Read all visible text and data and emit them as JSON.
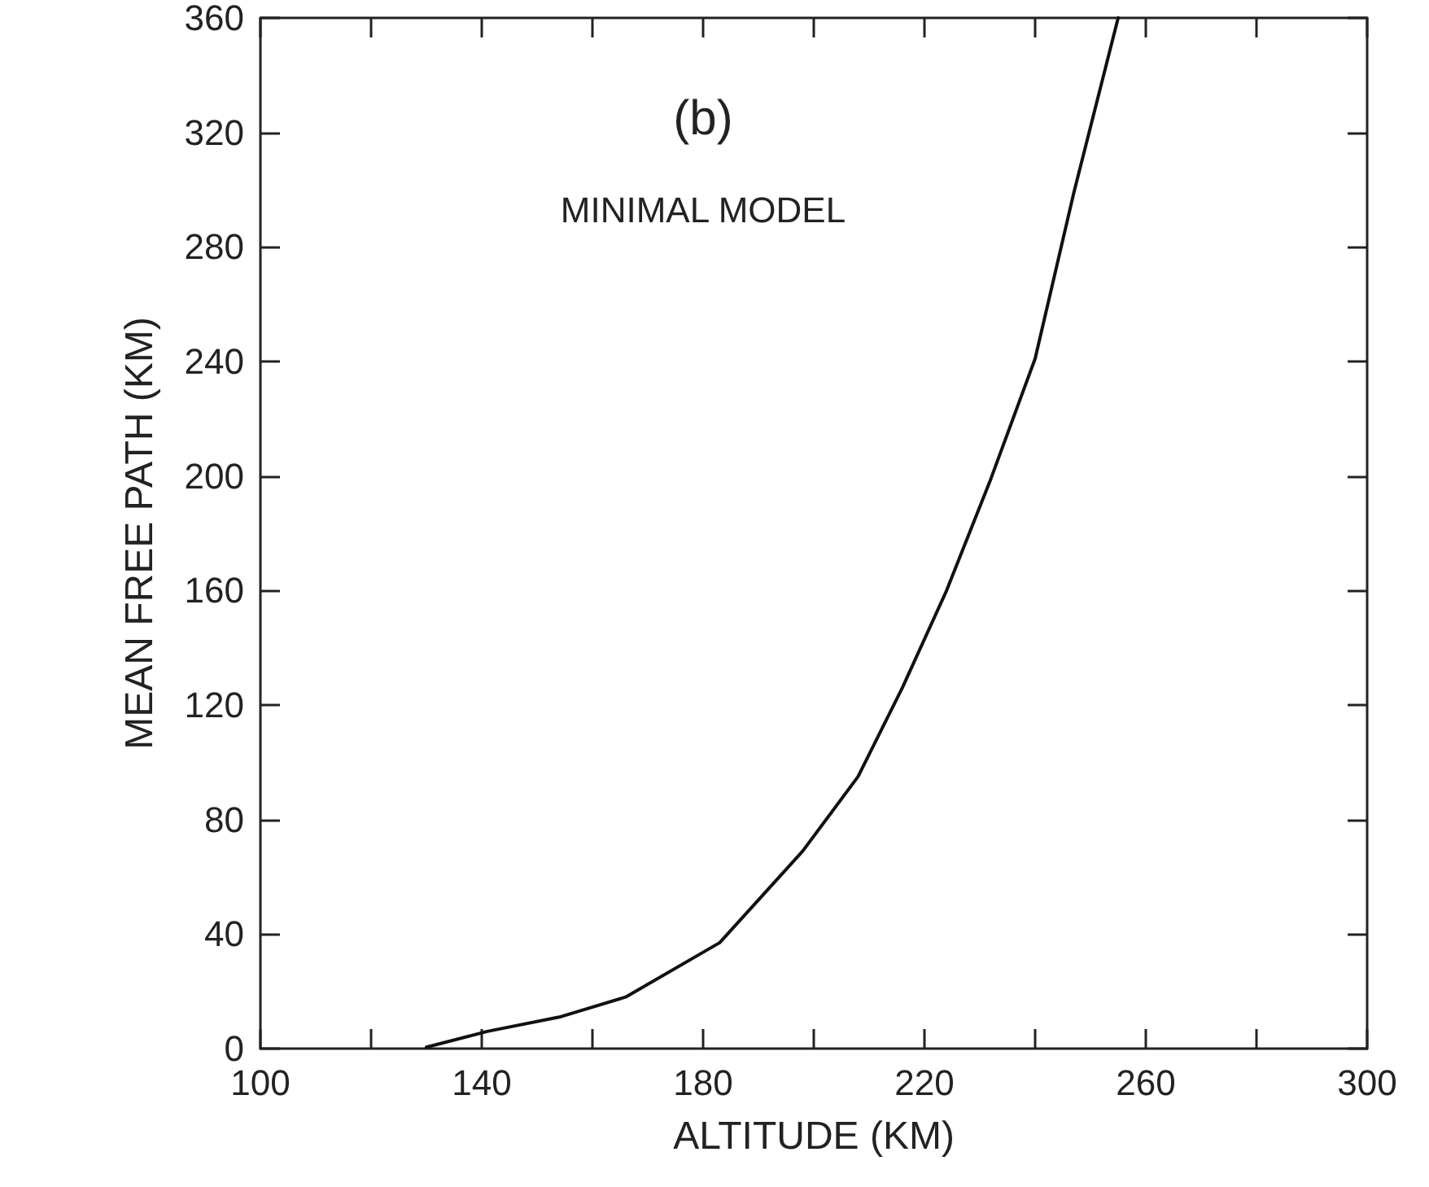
{
  "chart_data": {
    "type": "line",
    "xlabel": "ALTITUDE (KM)",
    "ylabel": "MEAN FREE PATH (KM)",
    "annotations": [
      "(b)",
      "MINIMAL MODEL"
    ],
    "series": [
      {
        "color": "#111111",
        "x": [
          130,
          141,
          154,
          166,
          183,
          198,
          208,
          216,
          224,
          232,
          240,
          247,
          255
        ],
        "values": [
          0.5,
          6,
          11,
          18,
          37,
          69,
          95,
          126,
          160,
          199,
          241,
          299,
          360
        ]
      }
    ],
    "xlim": [
      100,
      300
    ],
    "ylim": [
      0,
      360
    ],
    "xticks": [
      100,
      {
        "value": 120,
        "label": null
      },
      140,
      {
        "value": 160,
        "label": null
      },
      180,
      {
        "value": 200,
        "label": null
      },
      220,
      {
        "value": 240,
        "label": null
      },
      260,
      {
        "value": 280,
        "label": null
      },
      300
    ],
    "yticks": [
      0,
      40,
      80,
      120,
      160,
      200,
      240,
      280,
      320,
      360
    ],
    "grid": false,
    "marker": "none",
    "line_style": "solid"
  }
}
